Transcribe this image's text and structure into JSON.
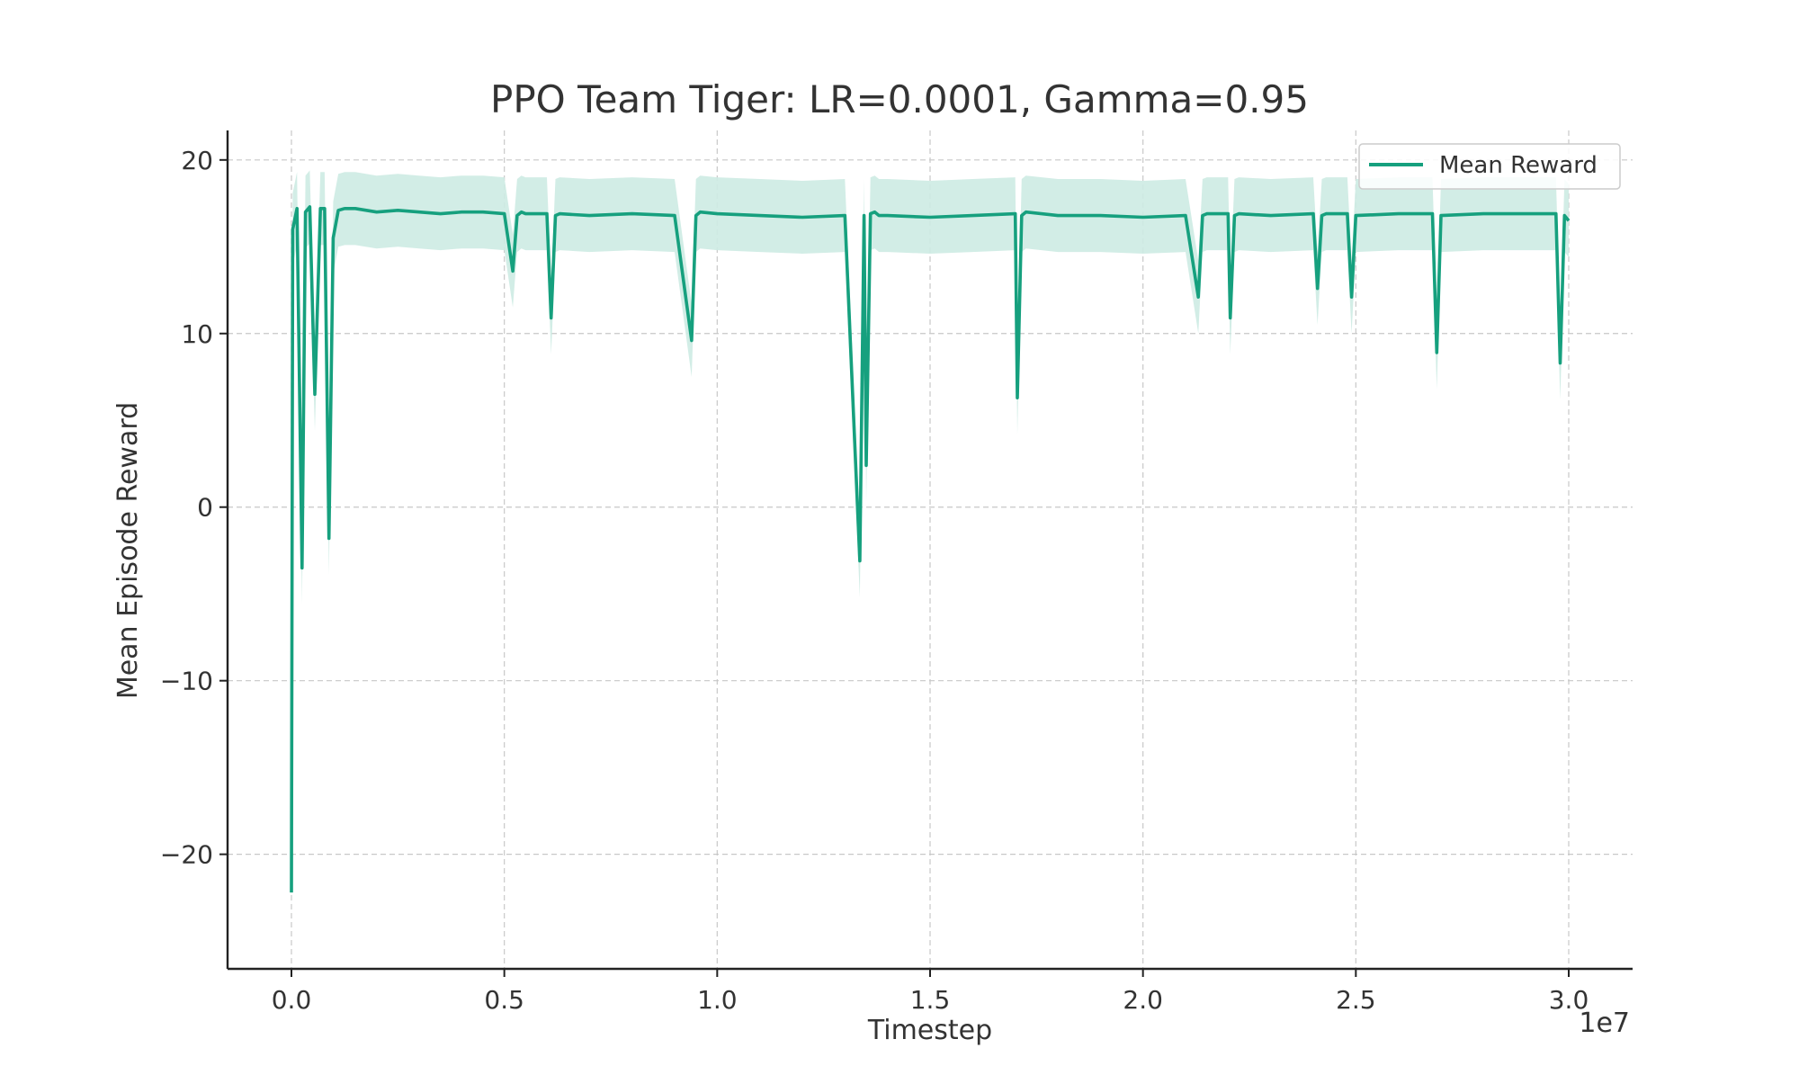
{
  "chart_data": {
    "type": "line",
    "title": "PPO Team Tiger: LR=0.0001, Gamma=0.95",
    "xlabel": "Timestep",
    "ylabel": "Mean Episode Reward",
    "x_offset_label": "1e7",
    "xlim": [
      -0.15,
      3.15
    ],
    "ylim": [
      -26.6,
      21.7
    ],
    "x_ticks": [
      0.0,
      0.5,
      1.0,
      1.5,
      2.0,
      2.5,
      3.0
    ],
    "x_tick_labels": [
      "0.0",
      "0.5",
      "1.0",
      "1.5",
      "2.0",
      "2.5",
      "3.0"
    ],
    "y_ticks": [
      -20,
      -10,
      0,
      10,
      20
    ],
    "y_tick_labels": [
      "−20",
      "−10",
      "0",
      "10",
      "20"
    ],
    "grid": true,
    "legend_position": "top-right",
    "series": [
      {
        "name": "Mean Reward",
        "color": "#16a07e",
        "band_color": "#cdebe3",
        "band_halfwidth": 2.1,
        "x": [
          0.0,
          0.003,
          0.013,
          0.025,
          0.033,
          0.043,
          0.055,
          0.068,
          0.078,
          0.088,
          0.098,
          0.11,
          0.125,
          0.15,
          0.2,
          0.25,
          0.3,
          0.35,
          0.4,
          0.45,
          0.5,
          0.52,
          0.53,
          0.54,
          0.55,
          0.6,
          0.61,
          0.62,
          0.63,
          0.7,
          0.8,
          0.9,
          0.94,
          0.95,
          0.96,
          1.0,
          1.1,
          1.2,
          1.3,
          1.335,
          1.345,
          1.35,
          1.36,
          1.37,
          1.38,
          1.4,
          1.5,
          1.6,
          1.7,
          1.705,
          1.715,
          1.725,
          1.8,
          1.9,
          2.0,
          2.1,
          2.13,
          2.14,
          2.15,
          2.2,
          2.205,
          2.215,
          2.225,
          2.3,
          2.4,
          2.41,
          2.42,
          2.43,
          2.48,
          2.49,
          2.5,
          2.6,
          2.68,
          2.69,
          2.7,
          2.8,
          2.97,
          2.98,
          2.99,
          3.0
        ],
        "values": [
          -22.2,
          16.0,
          17.2,
          -3.5,
          17.0,
          17.3,
          6.5,
          17.2,
          17.2,
          -1.8,
          15.5,
          17.1,
          17.2,
          17.2,
          17.0,
          17.1,
          17.0,
          16.9,
          17.0,
          17.0,
          16.9,
          13.6,
          16.8,
          17.0,
          16.9,
          16.9,
          10.9,
          16.8,
          16.9,
          16.8,
          16.9,
          16.8,
          9.6,
          16.8,
          17.0,
          16.9,
          16.8,
          16.7,
          16.8,
          -3.1,
          16.8,
          2.4,
          16.9,
          17.0,
          16.8,
          16.8,
          16.7,
          16.8,
          16.9,
          6.3,
          16.8,
          17.0,
          16.8,
          16.8,
          16.7,
          16.8,
          12.1,
          16.8,
          16.9,
          16.9,
          10.9,
          16.8,
          16.9,
          16.8,
          16.9,
          12.6,
          16.8,
          16.9,
          16.9,
          12.1,
          16.8,
          16.9,
          16.9,
          8.9,
          16.8,
          16.9,
          16.9,
          8.3,
          16.8,
          16.5
        ]
      }
    ]
  }
}
